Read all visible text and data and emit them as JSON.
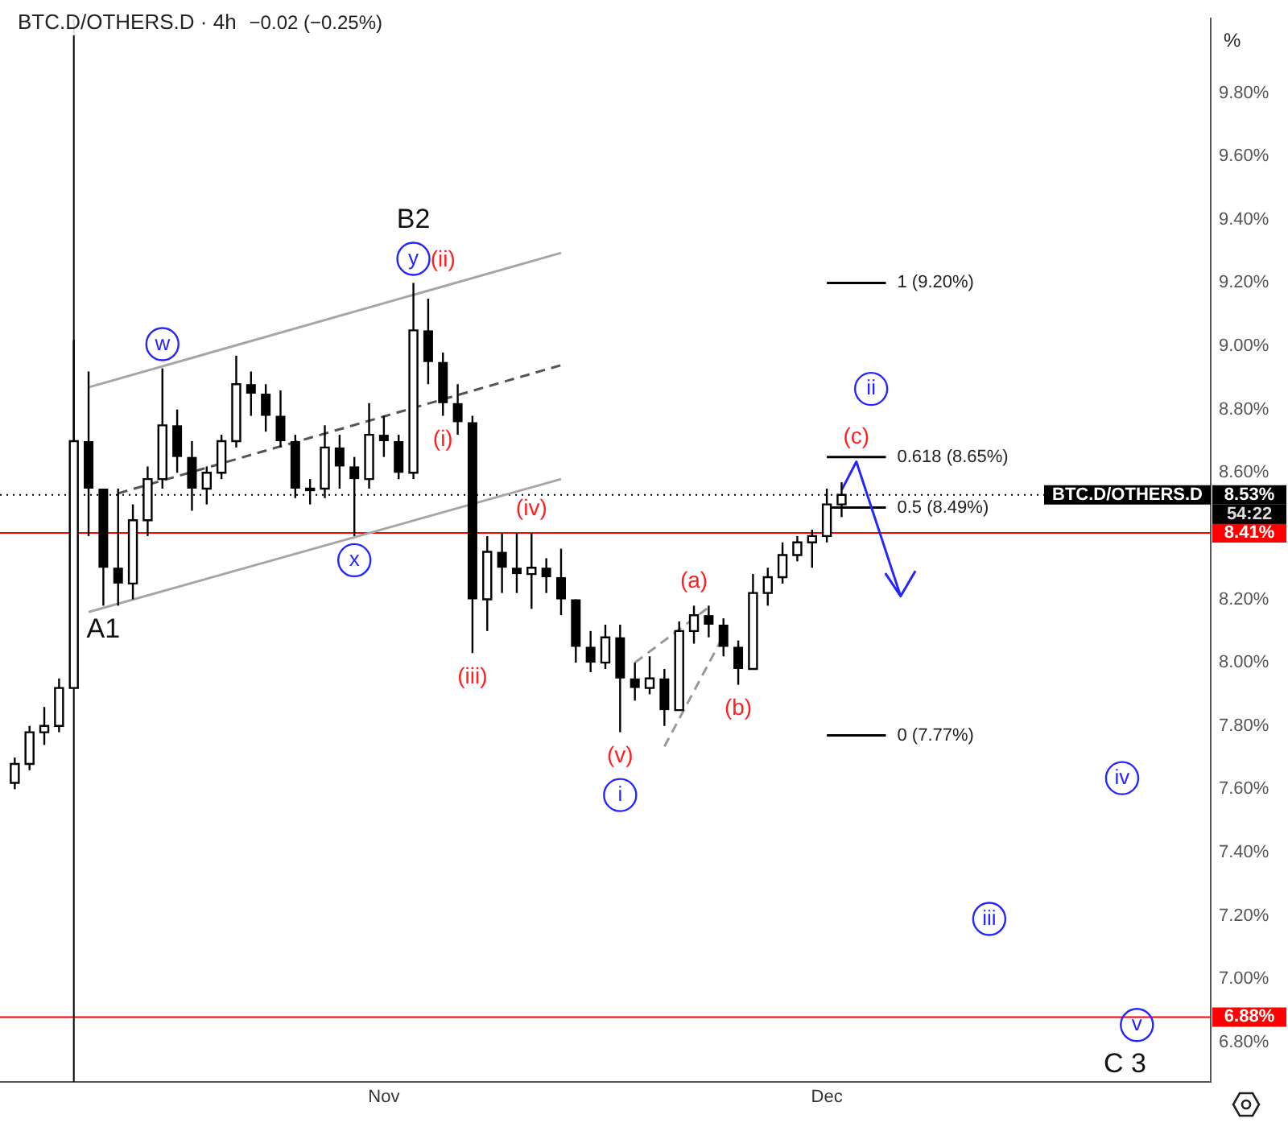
{
  "chart_data": {
    "type": "candlestick",
    "title": "BTC.D/OTHERS.D · 4h",
    "subtitle": "−0.02 (−0.25%)",
    "ylabel": "%",
    "x": [
      "--10-07",
      "--10-08",
      "--10-09",
      "--10-10",
      "--10-11",
      "--10-12",
      "--10-13",
      "--10-14",
      "--10-15",
      "--10-16",
      "--10-17",
      "--10-18",
      "--10-19",
      "--10-20",
      "--10-21",
      "--10-22",
      "--10-23",
      "--10-24",
      "--10-25",
      "--10-26",
      "--10-27",
      "--10-28",
      "--10-29",
      "--10-30",
      "--10-31",
      "--11-01",
      "--11-02",
      "--11-03",
      "--11-04",
      "--11-05",
      "--11-06",
      "--11-07",
      "--11-08",
      "--11-09",
      "--11-10",
      "--11-11",
      "--11-12",
      "--11-13",
      "--11-14",
      "--11-15",
      "--11-16",
      "--11-17",
      "--11-18",
      "--11-19",
      "--11-20",
      "--11-21",
      "--11-22",
      "--11-23",
      "--11-24",
      "--11-25",
      "--11-26",
      "--11-27",
      "--11-28",
      "--11-29",
      "--11-30",
      "--12-01",
      "--12-02"
    ],
    "ohlc": [
      [
        7.62,
        7.7,
        7.6,
        7.68
      ],
      [
        7.68,
        7.8,
        7.66,
        7.78
      ],
      [
        7.78,
        7.86,
        7.74,
        7.8
      ],
      [
        7.8,
        7.95,
        7.78,
        7.92
      ],
      [
        7.92,
        9.02,
        7.92,
        8.7
      ],
      [
        8.7,
        8.92,
        8.4,
        8.55
      ],
      [
        8.55,
        8.55,
        8.18,
        8.3
      ],
      [
        8.3,
        8.55,
        8.18,
        8.25
      ],
      [
        8.25,
        8.5,
        8.2,
        8.45
      ],
      [
        8.45,
        8.62,
        8.4,
        8.58
      ],
      [
        8.58,
        8.93,
        8.55,
        8.75
      ],
      [
        8.75,
        8.8,
        8.6,
        8.65
      ],
      [
        8.65,
        8.7,
        8.48,
        8.55
      ],
      [
        8.55,
        8.62,
        8.5,
        8.6
      ],
      [
        8.6,
        8.72,
        8.58,
        8.7
      ],
      [
        8.7,
        8.97,
        8.68,
        8.88
      ],
      [
        8.88,
        8.92,
        8.78,
        8.85
      ],
      [
        8.85,
        8.88,
        8.73,
        8.78
      ],
      [
        8.78,
        8.86,
        8.68,
        8.7
      ],
      [
        8.7,
        8.72,
        8.52,
        8.55
      ],
      [
        8.55,
        8.58,
        8.5,
        8.55
      ],
      [
        8.55,
        8.75,
        8.52,
        8.68
      ],
      [
        8.68,
        8.72,
        8.55,
        8.62
      ],
      [
        8.62,
        8.65,
        8.4,
        8.58
      ],
      [
        8.58,
        8.82,
        8.55,
        8.72
      ],
      [
        8.72,
        8.78,
        8.65,
        8.7
      ],
      [
        8.7,
        8.72,
        8.58,
        8.6
      ],
      [
        8.6,
        9.2,
        8.58,
        9.05
      ],
      [
        9.05,
        9.15,
        8.88,
        8.95
      ],
      [
        8.95,
        8.98,
        8.78,
        8.82
      ],
      [
        8.82,
        8.88,
        8.72,
        8.76
      ],
      [
        8.76,
        8.78,
        8.03,
        8.2
      ],
      [
        8.2,
        8.4,
        8.1,
        8.35
      ],
      [
        8.35,
        8.41,
        8.22,
        8.3
      ],
      [
        8.3,
        8.41,
        8.22,
        8.28
      ],
      [
        8.28,
        8.41,
        8.17,
        8.3
      ],
      [
        8.3,
        8.33,
        8.22,
        8.27
      ],
      [
        8.27,
        8.36,
        8.15,
        8.2
      ],
      [
        8.2,
        8.2,
        8.0,
        8.05
      ],
      [
        8.05,
        8.1,
        7.97,
        8.0
      ],
      [
        8.0,
        8.12,
        7.98,
        8.08
      ],
      [
        8.08,
        8.12,
        7.78,
        7.95
      ],
      [
        7.95,
        8.0,
        7.88,
        7.92
      ],
      [
        7.92,
        8.02,
        7.9,
        7.95
      ],
      [
        7.95,
        7.98,
        7.8,
        7.85
      ],
      [
        7.85,
        8.13,
        7.85,
        8.1
      ],
      [
        8.1,
        8.18,
        8.06,
        8.15
      ],
      [
        8.15,
        8.18,
        8.08,
        8.12
      ],
      [
        8.12,
        8.14,
        8.02,
        8.05
      ],
      [
        8.05,
        8.07,
        7.93,
        7.98
      ],
      [
        7.98,
        8.28,
        7.98,
        8.22
      ],
      [
        8.22,
        8.3,
        8.18,
        8.27
      ],
      [
        8.27,
        8.38,
        8.25,
        8.34
      ],
      [
        8.34,
        8.4,
        8.32,
        8.38
      ],
      [
        8.38,
        8.42,
        8.3,
        8.4
      ],
      [
        8.4,
        8.55,
        8.38,
        8.5
      ],
      [
        8.5,
        8.57,
        8.46,
        8.53
      ]
    ],
    "xlim": [
      "--10-06",
      "--12-27"
    ],
    "xticks": [
      {
        "value": "--11-01",
        "label": "Nov"
      },
      {
        "value": "--12-01",
        "label": "Dec"
      }
    ],
    "ylim": [
      6.675,
      10.035
    ],
    "yticks": [
      {
        "value": 6.8,
        "label": "6.80%"
      },
      {
        "value": 7.0,
        "label": "7.00%"
      },
      {
        "value": 7.2,
        "label": "7.20%"
      },
      {
        "value": 7.4,
        "label": "7.40%"
      },
      {
        "value": 7.6,
        "label": "7.60%"
      },
      {
        "value": 7.8,
        "label": "7.80%"
      },
      {
        "value": 8.0,
        "label": "8.00%"
      },
      {
        "value": 8.2,
        "label": "8.20%"
      },
      {
        "value": 8.6,
        "label": "8.60%"
      },
      {
        "value": 8.8,
        "label": "8.80%"
      },
      {
        "value": 9.0,
        "label": "9.00%"
      },
      {
        "value": 9.2,
        "label": "9.20%"
      },
      {
        "value": 9.4,
        "label": "9.40%"
      },
      {
        "value": 9.6,
        "label": "9.60%"
      },
      {
        "value": 9.8,
        "label": "9.80%"
      }
    ],
    "ref_lines": [
      {
        "axis": "y",
        "value": 8.53,
        "label": "8.53%",
        "color": "#000000",
        "line_style": "dotted"
      },
      {
        "axis": "y",
        "value": 8.41,
        "label": "8.41%",
        "color": "#ff0000",
        "line_style": "solid"
      },
      {
        "axis": "y",
        "value": 6.88,
        "label": "6.88%",
        "color": "#ff0000",
        "line_style": "solid"
      },
      {
        "axis": "x",
        "value": "--10-11",
        "color": "#000000",
        "line_style": "solid"
      }
    ],
    "series": [
      {
        "type": "line",
        "color": "#a6a6a6",
        "line_style": "solid",
        "x": [
          "--10-12",
          "--11-13"
        ],
        "values": [
          8.87,
          9.295
        ]
      },
      {
        "type": "line",
        "color": "#a6a6a6",
        "line_style": "solid",
        "x": [
          "--10-12",
          "--11-13"
        ],
        "values": [
          8.16,
          8.58
        ]
      },
      {
        "type": "line",
        "color": "#555555",
        "line_style": "dashed",
        "x": [
          "--10-14",
          "--11-13"
        ],
        "values": [
          8.535,
          8.94
        ]
      },
      {
        "type": "line",
        "color": "#999999",
        "line_style": "dashed",
        "x": [
          "--11-18",
          "--11-23"
        ],
        "values": [
          8.0,
          8.175
        ]
      },
      {
        "type": "line",
        "color": "#999999",
        "line_style": "dashed",
        "x": [
          "--11-20",
          "--11-24"
        ],
        "values": [
          7.735,
          8.085
        ]
      },
      {
        "type": "line",
        "color": "#2525ff",
        "line_style": "solid",
        "x": [
          "--12-02",
          "--12-03",
          "--12-06",
          "--12-05",
          "--12-06",
          "--12-07"
        ],
        "values": [
          8.545,
          8.635,
          8.21,
          8.28,
          8.21,
          8.29
        ]
      },
      {
        "type": "line",
        "name": "1 (9.20%)",
        "color": "#000000",
        "line_style": "solid",
        "x": [
          "--12-01",
          "--12-05"
        ],
        "values": [
          9.2,
          9.2
        ]
      },
      {
        "type": "line",
        "name": "0.618 (8.65%)",
        "color": "#000000",
        "line_style": "solid",
        "x": [
          "--12-01",
          "--12-05"
        ],
        "values": [
          8.65,
          8.65
        ]
      },
      {
        "type": "line",
        "name": "0.5 (8.49%)",
        "color": "#000000",
        "line_style": "solid",
        "x": [
          "--12-01",
          "--12-05"
        ],
        "values": [
          8.49,
          8.49
        ]
      },
      {
        "type": "line",
        "name": "0 (7.77%)",
        "color": "#000000",
        "line_style": "solid",
        "x": [
          "--12-01",
          "--12-05"
        ],
        "values": [
          7.77,
          7.77
        ]
      }
    ],
    "marker": "none",
    "annotations": [
      "BTC.D/OTHERS.D",
      "54:22",
      "C 3",
      {
        "text": "A1",
        "x": "--10-13",
        "y": 8.18
      },
      {
        "text": "w",
        "x": "--10-17",
        "y": 8.93
      },
      {
        "text": "x",
        "x": "--10-30",
        "y": 8.4
      },
      {
        "text": "y",
        "x": "--11-03",
        "y": 9.2
      },
      {
        "text": "B2",
        "x": "--11-03",
        "y": 9.2
      },
      {
        "text": "(ii)",
        "x": "--11-05",
        "y": 9.195
      },
      {
        "text": "(i)",
        "x": "--11-05",
        "y": 8.78
      },
      {
        "text": "(iii)",
        "x": "--11-07",
        "y": 8.03
      },
      {
        "text": "(iv)",
        "x": "--11-11",
        "y": 8.41
      },
      {
        "text": "(v)",
        "x": "--11-17",
        "y": 7.78
      },
      {
        "text": "i",
        "x": "--11-17",
        "y": 7.78
      },
      {
        "text": "(a)",
        "x": "--11-22",
        "y": 8.18
      },
      {
        "text": "(b)",
        "x": "--11-25",
        "y": 7.93
      },
      {
        "text": "(c)",
        "x": "--12-03",
        "y": 8.635
      },
      {
        "text": "ii",
        "x": "--12-04",
        "y": 8.865
      },
      {
        "text": "iii",
        "x": "--12-12",
        "y": 7.19
      },
      {
        "text": "iv",
        "x": "--12-21",
        "y": 7.635
      },
      {
        "text": "v",
        "x": "--12-22",
        "y": 6.855
      }
    ]
  }
}
